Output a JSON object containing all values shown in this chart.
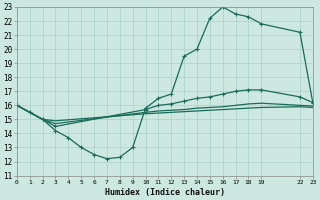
{
  "xlabel": "Humidex (Indice chaleur)",
  "bg_color": "#cce8e0",
  "grid_color": "#b0d4cc",
  "line_color": "#1a6b5a",
  "xmin": 0,
  "xmax": 23,
  "ymin": 11,
  "ymax": 23,
  "xticks": [
    0,
    1,
    2,
    3,
    4,
    5,
    6,
    7,
    8,
    9,
    10,
    11,
    12,
    13,
    14,
    15,
    16,
    17,
    18,
    19,
    22,
    23
  ],
  "xtick_labels": [
    "0",
    "1",
    "2",
    "3",
    "4",
    "5",
    "6",
    "7",
    "8",
    "9",
    "10",
    "11",
    "12",
    "13",
    "14",
    "15",
    "16",
    "17",
    "18",
    "19",
    "22",
    "23"
  ],
  "yticks": [
    11,
    12,
    13,
    14,
    15,
    16,
    17,
    18,
    19,
    20,
    21,
    22,
    23
  ],
  "line1_x": [
    0,
    1,
    2,
    3,
    4,
    5,
    6,
    7,
    8,
    9,
    10,
    11,
    12,
    13,
    14,
    15,
    16,
    17,
    18,
    19,
    22,
    23
  ],
  "line1_y": [
    16,
    15.5,
    15.0,
    14.2,
    13.7,
    13.0,
    12.5,
    12.2,
    12.3,
    13.0,
    15.8,
    16.5,
    16.8,
    19.5,
    20.0,
    22.2,
    23.0,
    22.5,
    22.3,
    21.8,
    21.2,
    16.2
  ],
  "line2_x": [
    0,
    2,
    3,
    10,
    11,
    12,
    13,
    14,
    15,
    16,
    17,
    18,
    19,
    22,
    23
  ],
  "line2_y": [
    16,
    15.0,
    14.5,
    15.7,
    16.0,
    16.1,
    16.3,
    16.5,
    16.6,
    16.8,
    17.0,
    17.1,
    17.1,
    16.6,
    16.2
  ],
  "line3_x": [
    0,
    2,
    3,
    10,
    11,
    12,
    13,
    14,
    15,
    16,
    17,
    18,
    19,
    22,
    23
  ],
  "line3_y": [
    16,
    15.0,
    14.7,
    15.5,
    15.6,
    15.65,
    15.7,
    15.8,
    15.85,
    15.9,
    16.0,
    16.1,
    16.15,
    16.0,
    15.95
  ],
  "line4_x": [
    0,
    2,
    3,
    10,
    11,
    12,
    13,
    14,
    15,
    16,
    17,
    18,
    19,
    22,
    23
  ],
  "line4_y": [
    16,
    15.0,
    14.9,
    15.4,
    15.45,
    15.5,
    15.55,
    15.6,
    15.65,
    15.7,
    15.75,
    15.8,
    15.85,
    15.9,
    15.85
  ]
}
